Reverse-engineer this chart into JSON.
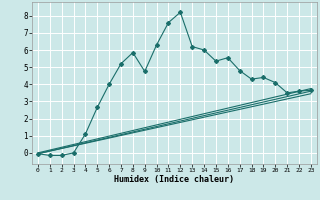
{
  "xlabel": "Humidex (Indice chaleur)",
  "background_color": "#cce8e8",
  "grid_color": "#ffffff",
  "line_color": "#1a6e6a",
  "xlim": [
    -0.5,
    23.5
  ],
  "ylim": [
    -0.65,
    8.8
  ],
  "xticks": [
    0,
    1,
    2,
    3,
    4,
    5,
    6,
    7,
    8,
    9,
    10,
    11,
    12,
    13,
    14,
    15,
    16,
    17,
    18,
    19,
    20,
    21,
    22,
    23
  ],
  "yticks": [
    0,
    1,
    2,
    3,
    4,
    5,
    6,
    7,
    8
  ],
  "main_x": [
    0,
    1,
    2,
    3,
    4,
    5,
    6,
    7,
    8,
    9,
    10,
    11,
    12,
    13,
    14,
    15,
    16,
    17,
    18,
    19,
    20,
    21,
    22,
    23
  ],
  "main_y": [
    -0.05,
    -0.15,
    -0.15,
    0.0,
    1.1,
    2.65,
    4.0,
    5.2,
    5.85,
    4.75,
    6.3,
    7.6,
    8.2,
    6.2,
    6.0,
    5.35,
    5.55,
    4.8,
    4.3,
    4.4,
    4.1,
    3.5,
    3.6,
    3.65
  ],
  "line1_x": [
    0,
    23
  ],
  "line1_y": [
    -0.05,
    3.45
  ],
  "line2_x": [
    0,
    23
  ],
  "line2_y": [
    -0.05,
    3.6
  ],
  "line3_x": [
    0,
    23
  ],
  "line3_y": [
    0.0,
    3.75
  ]
}
